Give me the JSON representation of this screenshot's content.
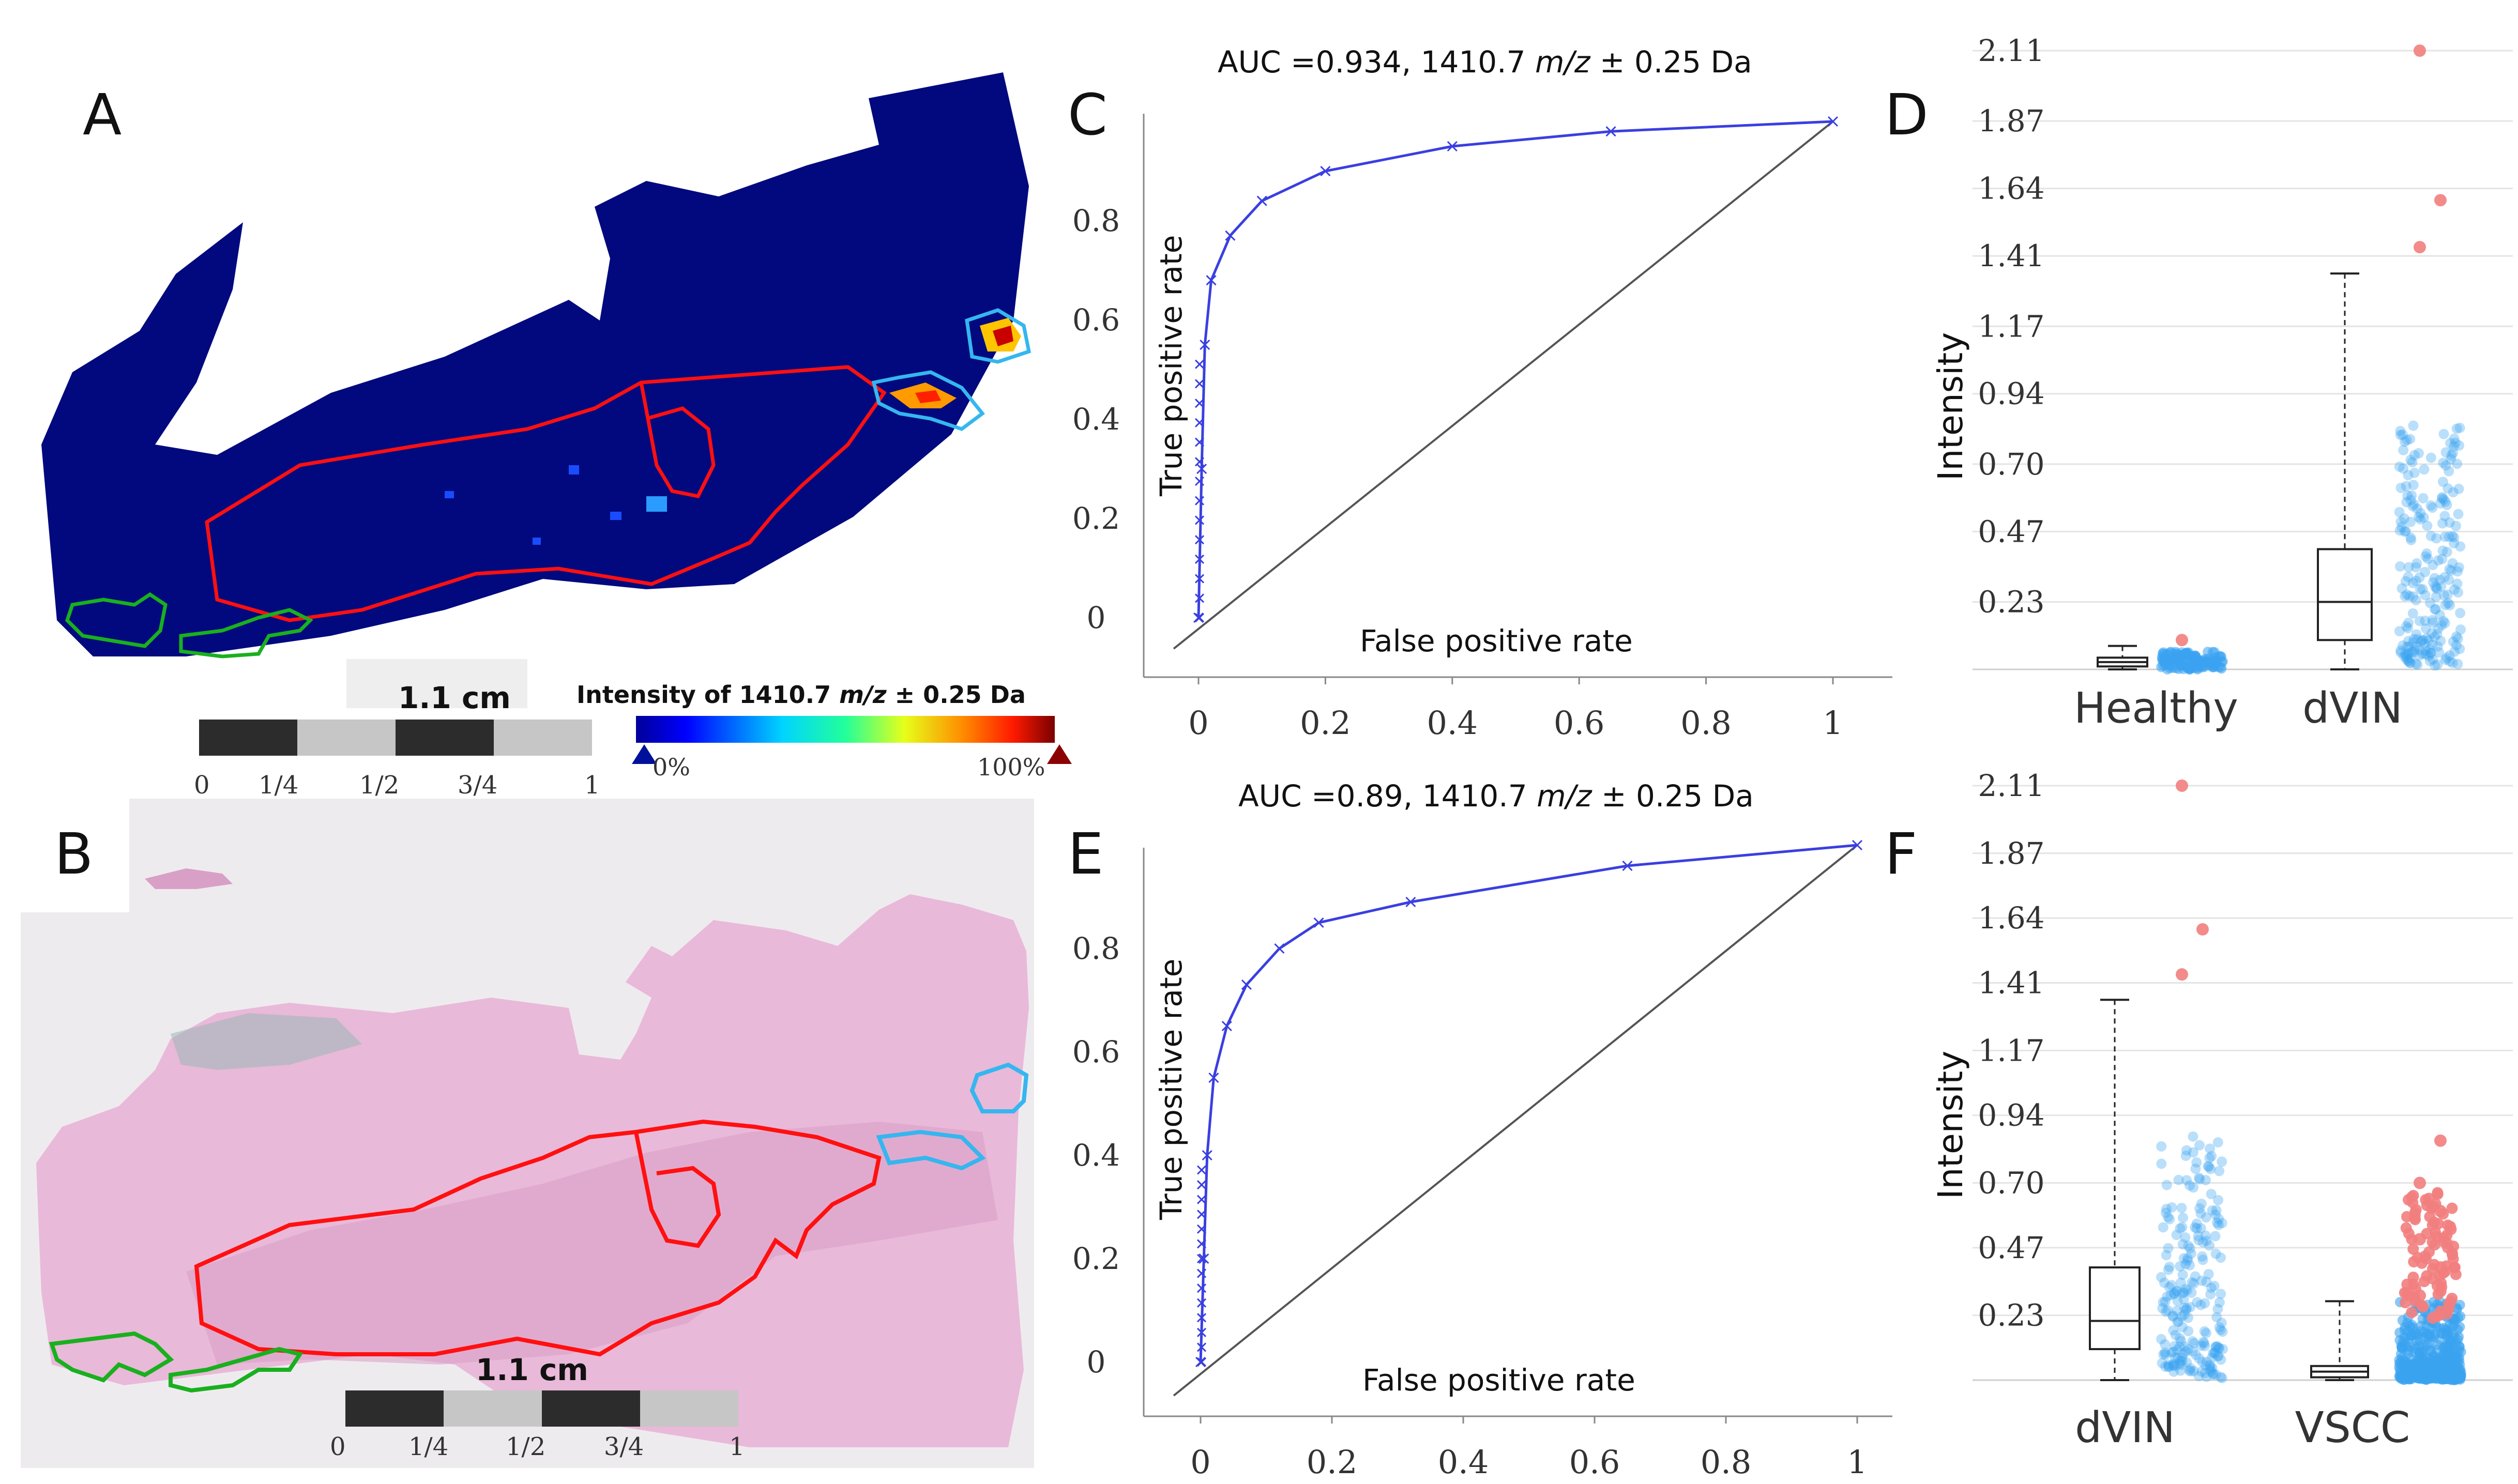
{
  "panels": {
    "a": "A",
    "b": "B",
    "c": "C",
    "d": "D",
    "e": "E",
    "f": "F"
  },
  "scalebar": {
    "label": "1.1 cm",
    "ticks": [
      "0",
      "1/4",
      "1/2",
      "3/4",
      "1"
    ]
  },
  "colorbar": {
    "title_prefix": "Intensity of 1410.7 ",
    "title_mz": "m/z",
    "title_suffix": " ± 0.25 Da",
    "min_label": "0%",
    "max_label": "100%"
  },
  "colors": {
    "tissue_map": "#02097e",
    "outline_tumor": "#ff1010",
    "outline_healthy": "#19b01e",
    "outline_dvin": "#35b6ef",
    "he_tissue": "#e9b9d9",
    "roc_curve": "#3a3fe0",
    "box_points_blue": "#3aa3f0",
    "box_points_red": "#f27e7e"
  },
  "chart_data": [
    {
      "id": "C",
      "type": "line",
      "title_prefix": "AUC =0.934, 1410.7 ",
      "title_mz": "m/z",
      "title_suffix": " ± 0.25 Da",
      "xlabel": "False positive rate",
      "ylabel": "True positive rate",
      "xticks": [
        "0",
        "0.2",
        "0.4",
        "0.6",
        "0.8",
        "1"
      ],
      "yticks": [
        "0",
        "0.2",
        "0.4",
        "0.6",
        "0.8"
      ],
      "xlim": [
        0,
        1
      ],
      "ylim": [
        0,
        1
      ],
      "series": [
        {
          "x": [
            0,
            0.005,
            0.01,
            0.02,
            0.05,
            0.1,
            0.2,
            0.4,
            0.65,
            1.0
          ],
          "y": [
            0,
            0.3,
            0.55,
            0.68,
            0.77,
            0.84,
            0.9,
            0.95,
            0.98,
            1.0
          ]
        }
      ],
      "diagonal": true
    },
    {
      "id": "D",
      "type": "box",
      "ylabel": "Intensity",
      "yticks": [
        "0.23",
        "0.47",
        "0.70",
        "0.94",
        "1.17",
        "1.41",
        "1.64",
        "1.87",
        "2.11"
      ],
      "ylim": [
        0,
        2.2
      ],
      "categories": [
        "Healthy",
        "dVIN"
      ],
      "boxes": [
        {
          "name": "Healthy",
          "min": 0.0,
          "q1": 0.01,
          "median": 0.025,
          "q3": 0.04,
          "max": 0.08,
          "outliers": [
            0.1
          ]
        },
        {
          "name": "dVIN",
          "min": 0.0,
          "q1": 0.1,
          "median": 0.23,
          "q3": 0.41,
          "max": 1.35,
          "outliers": [
            1.44,
            1.6,
            2.11
          ]
        }
      ]
    },
    {
      "id": "E",
      "type": "line",
      "title_prefix": "AUC =0.89, 1410.7 ",
      "title_mz": "m/z",
      "title_suffix": " ± 0.25 Da",
      "xlabel": "False positive rate",
      "ylabel": "True positive rate",
      "xticks": [
        "0",
        "0.2",
        "0.4",
        "0.6",
        "0.8",
        "1"
      ],
      "yticks": [
        "0",
        "0.2",
        "0.4",
        "0.6",
        "0.8"
      ],
      "xlim": [
        0,
        1
      ],
      "ylim": [
        0,
        1
      ],
      "series": [
        {
          "x": [
            0,
            0.005,
            0.01,
            0.02,
            0.04,
            0.07,
            0.12,
            0.18,
            0.32,
            0.65,
            1.0
          ],
          "y": [
            0,
            0.2,
            0.4,
            0.55,
            0.65,
            0.73,
            0.8,
            0.85,
            0.89,
            0.96,
            1.0
          ]
        }
      ],
      "diagonal": true
    },
    {
      "id": "F",
      "type": "box",
      "ylabel": "Intensity",
      "yticks": [
        "0.23",
        "0.47",
        "0.70",
        "0.94",
        "1.17",
        "1.41",
        "1.64",
        "1.87",
        "2.11"
      ],
      "ylim": [
        0,
        2.2
      ],
      "categories": [
        "dVIN",
        "VSCC"
      ],
      "boxes": [
        {
          "name": "dVIN",
          "min": 0.0,
          "q1": 0.11,
          "median": 0.21,
          "q3": 0.4,
          "max": 1.35,
          "outliers": [
            1.44,
            1.6,
            2.11
          ]
        },
        {
          "name": "VSCC",
          "min": 0.0,
          "q1": 0.01,
          "median": 0.03,
          "q3": 0.05,
          "max": 0.28,
          "outliers": [
            0.3,
            0.4,
            0.5,
            0.6,
            0.7,
            0.85
          ]
        }
      ]
    }
  ]
}
